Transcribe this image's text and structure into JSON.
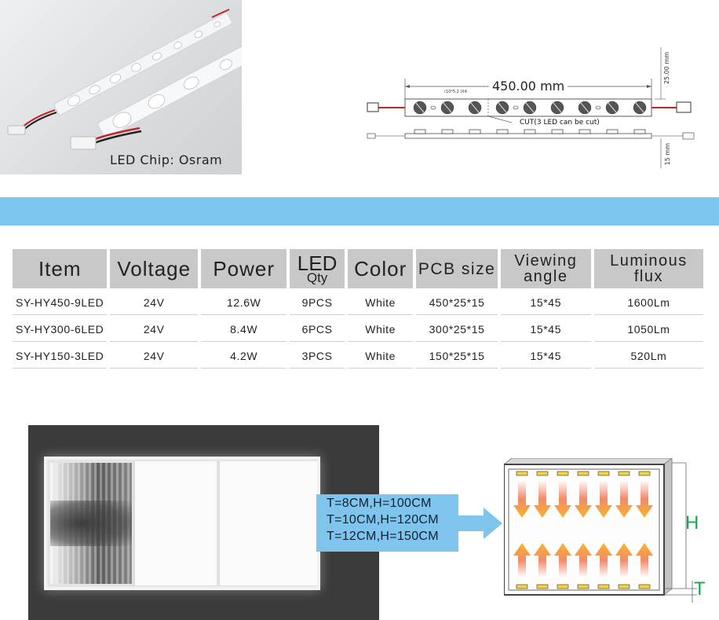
{
  "product_photo": {
    "chip_label": "LED Chip: Osram"
  },
  "drawing": {
    "length_dim": "450.00 mm",
    "hole_dim": "(10*5.2 )X4",
    "cut_label": "CUT(3 LED can be cut)",
    "width_dim": "25.00 mm",
    "height_dim": "15 mm"
  },
  "banner_color": "#7cc6ef",
  "spec_table": {
    "headers": {
      "item": "Item",
      "voltage": "Voltage",
      "power": "Power",
      "led_qty_top": "LED",
      "led_qty_bottom": "Qty",
      "color": "Color",
      "pcb_size": "PCB size",
      "viewing_angle_1": "Viewing",
      "viewing_angle_2": "angle",
      "luminous_flux_1": "Luminous",
      "luminous_flux_2": "flux"
    },
    "rows": [
      {
        "item": "SY-HY450-9LED",
        "voltage": "24V",
        "power": "12.6W",
        "qty": "9PCS",
        "color": "White",
        "pcb": "450*25*15",
        "angle": "15*45",
        "flux": "1600Lm"
      },
      {
        "item": "SY-HY300-6LED",
        "voltage": "24V",
        "power": "8.4W",
        "qty": "6PCS",
        "color": "White",
        "pcb": "300*25*15",
        "angle": "15*45",
        "flux": "1050Lm"
      },
      {
        "item": "SY-HY150-3LED",
        "voltage": "24V",
        "power": "4.2W",
        "qty": "3PCS",
        "color": "White",
        "pcb": "150*25*15",
        "angle": "15*45",
        "flux": "520Lm"
      }
    ]
  },
  "callout": {
    "lines": [
      "T=8CM,H=100CM",
      "T=10CM,H=120CM",
      "T=12CM,H=150CM"
    ],
    "color": "#7fc4ec"
  },
  "diagram": {
    "label_h": "H",
    "label_t": "T",
    "label_color": "#19a54a",
    "arrow_color": "#f5a623"
  }
}
